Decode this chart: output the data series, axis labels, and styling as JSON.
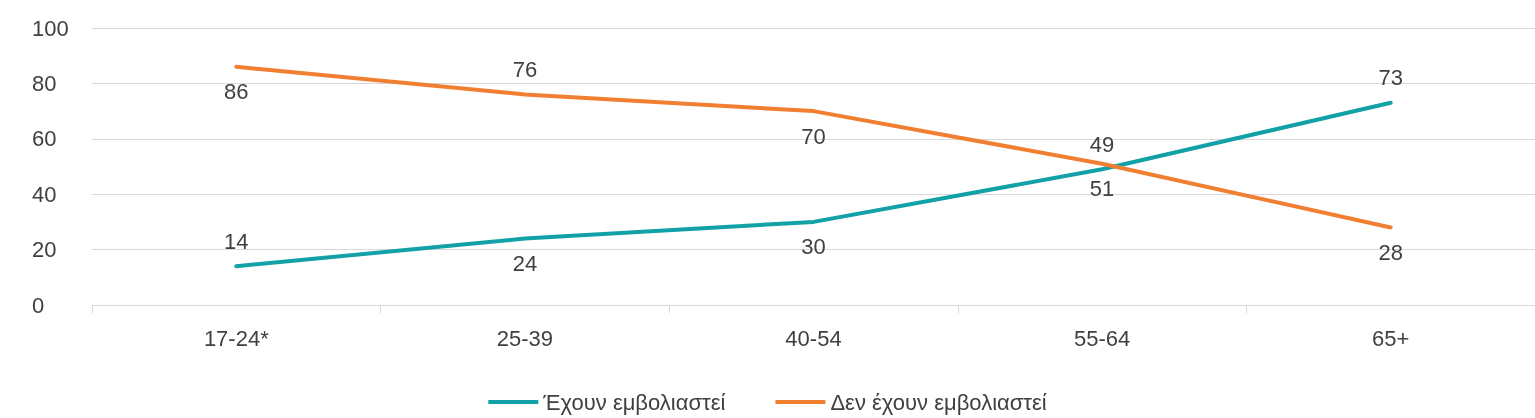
{
  "chart_data": {
    "type": "line",
    "categories": [
      "17-24*",
      "25-39",
      "40-54",
      "55-64",
      "65+"
    ],
    "series": [
      {
        "name": "Έχουν εμβολιαστεί",
        "color": "#12a1a6",
        "values": [
          14,
          24,
          30,
          49,
          73
        ]
      },
      {
        "name": "Δεν έχουν εμβολιαστεί",
        "color": "#f07f32",
        "values": [
          86,
          76,
          70,
          51,
          28
        ]
      }
    ],
    "ylim": [
      0,
      100
    ],
    "yticks": [
      0,
      20,
      40,
      60,
      80,
      100
    ],
    "grid": "y",
    "legend": "bottom",
    "marker": "none",
    "line_style": "solid",
    "data_labels": true
  }
}
